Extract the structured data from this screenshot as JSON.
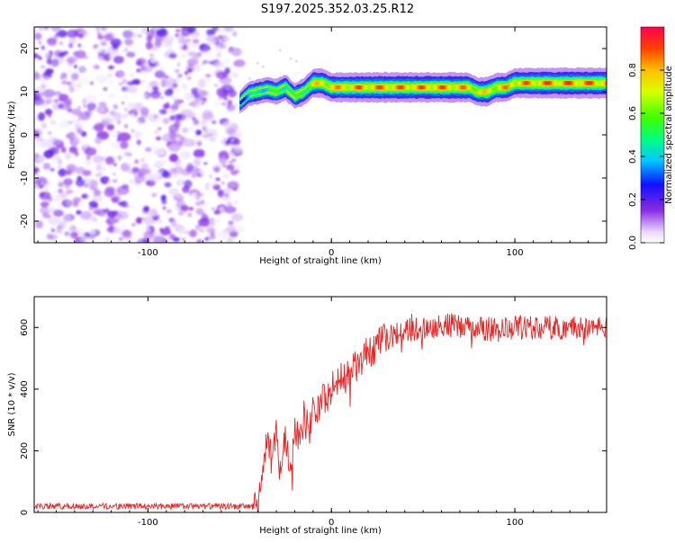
{
  "title": "S197.2025.352.03.25.R12",
  "chart_data": [
    {
      "type": "heatmap",
      "name": "spectrogram",
      "xlabel": "Height of straight line (km)",
      "ylabel": "Frequency (Hz)",
      "xlim": [
        -162,
        150
      ],
      "ylim": [
        -25,
        25
      ],
      "xticks": [
        -100,
        0,
        100
      ],
      "yticks": [
        -20,
        -10,
        0,
        10,
        20
      ],
      "noise_region_x": [
        -162,
        -50
      ],
      "noise_level_range": [
        0.0,
        0.2
      ],
      "signal_trace": {
        "x": [
          -50,
          -45,
          -40,
          -35,
          -30,
          -25,
          -20,
          -15,
          -10,
          -5,
          0,
          10,
          20,
          30,
          40,
          50,
          60,
          70,
          75,
          80,
          85,
          90,
          95,
          100,
          110,
          120,
          130,
          140,
          150
        ],
        "freq_hz": [
          7.5,
          9.5,
          10,
          10.5,
          10,
          11,
          9,
          10,
          12,
          12,
          11,
          11,
          11,
          11,
          11,
          11,
          11,
          11,
          11,
          10,
          10,
          11,
          11,
          12,
          12,
          12,
          12,
          12,
          12
        ],
        "peak_amplitude": [
          0.35,
          0.45,
          0.5,
          0.55,
          0.55,
          0.6,
          0.55,
          0.65,
          0.8,
          0.85,
          0.85,
          0.9,
          0.92,
          0.92,
          0.92,
          0.92,
          0.92,
          0.9,
          0.85,
          0.8,
          0.82,
          0.85,
          0.88,
          0.9,
          0.92,
          0.95,
          0.95,
          0.95,
          0.95
        ]
      },
      "colorbar": {
        "label": "Normalized spectral amplitude",
        "range": [
          0.0,
          1.0
        ],
        "ticks": [
          0.0,
          0.2,
          0.4,
          0.6,
          0.8
        ]
      }
    },
    {
      "type": "line",
      "name": "snr",
      "xlabel": "Height of straight line (km)",
      "ylabel": "SNR (10 * v/v)",
      "xlim": [
        -162,
        150
      ],
      "ylim": [
        0,
        700
      ],
      "xticks": [
        -100,
        0,
        100
      ],
      "yticks": [
        0,
        200,
        400,
        600
      ],
      "color": "#ee2222",
      "series": [
        {
          "name": "SNR",
          "x": [
            -162,
            -140,
            -120,
            -100,
            -80,
            -60,
            -45,
            -40,
            -38,
            -35,
            -32,
            -30,
            -28,
            -25,
            -22,
            -20,
            -18,
            -15,
            -12,
            -10,
            -8,
            -5,
            -2,
            0,
            5,
            10,
            15,
            20,
            25,
            30,
            35,
            40,
            50,
            60,
            70,
            80,
            90,
            100,
            110,
            120,
            130,
            140,
            150
          ],
          "y": [
            20,
            20,
            20,
            20,
            20,
            20,
            20,
            20,
            120,
            220,
            160,
            280,
            130,
            240,
            150,
            300,
            230,
            310,
            260,
            350,
            320,
            380,
            360,
            400,
            430,
            450,
            480,
            520,
            540,
            560,
            580,
            590,
            600,
            610,
            600,
            600,
            590,
            600,
            600,
            600,
            600,
            600,
            600
          ],
          "noise_amplitude": 40
        }
      ]
    }
  ],
  "colors": {
    "signal_line": "#ee2222",
    "noise_dot": "#7a2be0"
  }
}
